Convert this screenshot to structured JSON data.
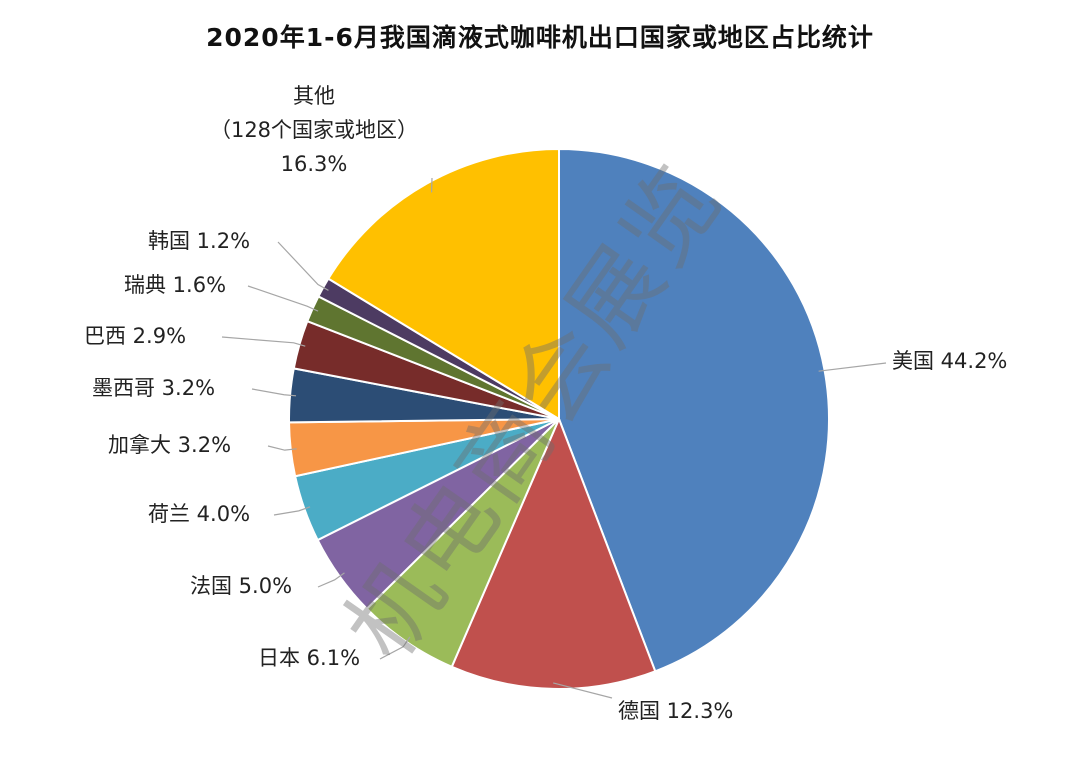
{
  "chart_data": {
    "type": "pie",
    "title": "2020年1-6月我国滴液式咖啡机出口国家或地区占比统计",
    "unit": "%",
    "slices": [
      {
        "label": "美国",
        "value": 44.2,
        "value_text": "44.2%",
        "color": "#4f81bd"
      },
      {
        "label": "德国",
        "value": 12.3,
        "value_text": "12.3%",
        "color": "#c0504d"
      },
      {
        "label": "日本",
        "value": 6.1,
        "value_text": "6.1%",
        "color": "#9bbb59"
      },
      {
        "label": "法国",
        "value": 5.0,
        "value_text": "5.0%",
        "color": "#8064a2"
      },
      {
        "label": "荷兰",
        "value": 4.0,
        "value_text": "4.0%",
        "color": "#4bacc6"
      },
      {
        "label": "加拿大",
        "value": 3.2,
        "value_text": "3.2%",
        "color": "#f79646"
      },
      {
        "label": "墨西哥",
        "value": 3.2,
        "value_text": "3.2%",
        "color": "#2c4d75"
      },
      {
        "label": "巴西",
        "value": 2.9,
        "value_text": "2.9%",
        "color": "#772c2a"
      },
      {
        "label": "瑞典",
        "value": 1.6,
        "value_text": "1.6%",
        "color": "#5f7530"
      },
      {
        "label": "韩国",
        "value": 1.2,
        "value_text": "1.2%",
        "color": "#4d3b62"
      },
      {
        "label": "其他",
        "sublabel": "（128个国家或地区）",
        "value": 16.3,
        "value_text": "16.3%",
        "color": "#ffc000"
      }
    ]
  },
  "watermark": "机电商会展览"
}
